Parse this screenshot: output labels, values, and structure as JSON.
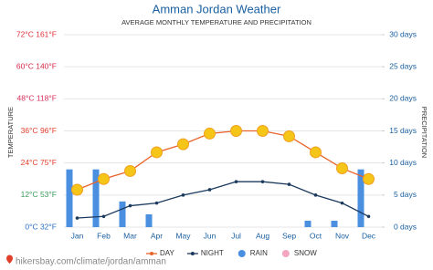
{
  "chart_data": {
    "type": "combo",
    "title": "Amman Jordan Weather",
    "subtitle": "AVERAGE MONTHLY TEMPERATURE AND PRECIPITATION",
    "y_label": "TEMPERATURE",
    "y2_label": "PRECIPITATION",
    "source": "hikersbay.com/climate/jordan/amman",
    "categories": [
      "Jan",
      "Feb",
      "Mar",
      "Apr",
      "May",
      "Jun",
      "Jul",
      "Aug",
      "Sep",
      "Oct",
      "Nov",
      "Dec"
    ],
    "ylim": [
      0,
      72
    ],
    "yticks": [
      {
        "value": 0,
        "label": "0°C 32°F"
      },
      {
        "value": 12,
        "label": "12°C 53°F"
      },
      {
        "value": 24,
        "label": "24°C 75°F"
      },
      {
        "value": 36,
        "label": "36°C 96°F"
      },
      {
        "value": 48,
        "label": "48°C 118°F"
      },
      {
        "value": 60,
        "label": "60°C 140°F"
      },
      {
        "value": 72,
        "label": "72°C 161°F"
      }
    ],
    "ytick_colors": [
      "#2a6fc9",
      "#3a9a5a",
      "#e0402a",
      "#e0402a",
      "#d8305a",
      "#d42a4a",
      "#e0303a"
    ],
    "y2lim": [
      0,
      30
    ],
    "y2ticks": [
      {
        "value": 0,
        "label": "0 days"
      },
      {
        "value": 5,
        "label": "5 days"
      },
      {
        "value": 10,
        "label": "10 days"
      },
      {
        "value": 15,
        "label": "15 days"
      },
      {
        "value": 20,
        "label": "20 days"
      },
      {
        "value": 25,
        "label": "25 days"
      },
      {
        "value": 30,
        "label": "30 days"
      }
    ],
    "grid": true,
    "series": [
      {
        "name": "DAY",
        "type": "line",
        "color": "#e8632a",
        "marker_color": "#f5c518",
        "values": [
          14,
          18,
          21,
          28,
          31,
          35,
          36,
          36,
          34,
          28,
          22,
          18
        ]
      },
      {
        "name": "NIGHT",
        "type": "line",
        "color": "#1c3a5e",
        "marker_color": "#1c3a5e",
        "values": [
          3.4,
          4,
          8,
          9,
          12,
          14,
          17,
          17,
          16,
          12,
          9,
          4
        ]
      },
      {
        "name": "RAIN",
        "type": "bar",
        "axis": "y2",
        "color": "#4a8fe0",
        "values": [
          9,
          9,
          4,
          2,
          0,
          0,
          0,
          0,
          0,
          1,
          1,
          9
        ]
      },
      {
        "name": "SNOW",
        "type": "bar",
        "axis": "y2",
        "color": "#f4a6c0",
        "values": [
          0,
          0,
          0,
          0,
          0,
          0,
          0,
          0,
          0,
          0,
          0,
          0
        ]
      }
    ]
  }
}
